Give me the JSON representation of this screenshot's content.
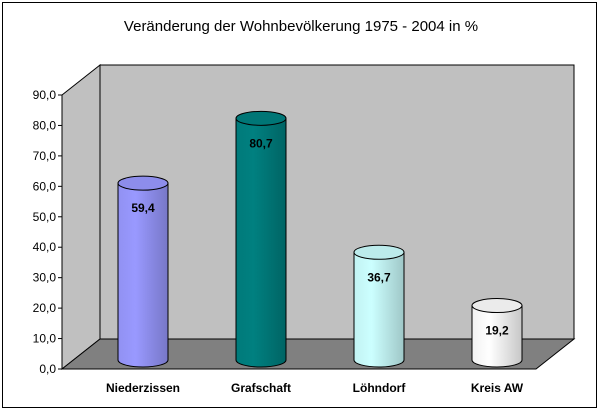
{
  "chart_data": {
    "type": "bar",
    "title": "Veränderung der Wohnbevölkerung 1975 - 2004 in %",
    "categories": [
      "Niederzissen",
      "Grafschaft",
      "Löhndorf",
      "Kreis AW"
    ],
    "values": [
      59.4,
      80.7,
      36.7,
      19.2
    ],
    "data_labels": [
      "59,4",
      "80,7",
      "36,7",
      "19,2"
    ],
    "y_ticks": [
      "0,0",
      "10,0",
      "20,0",
      "30,0",
      "40,0",
      "50,0",
      "60,0",
      "70,0",
      "80,0",
      "90,0"
    ],
    "ylim": [
      0,
      90
    ],
    "bar_shape": "cylinder",
    "grid": false,
    "colors": {
      "bars": [
        "#9999ff",
        "#008080",
        "#ccffff",
        "#ffffff"
      ],
      "back_wall": "#c0c0c0",
      "floor": "#808080"
    }
  }
}
